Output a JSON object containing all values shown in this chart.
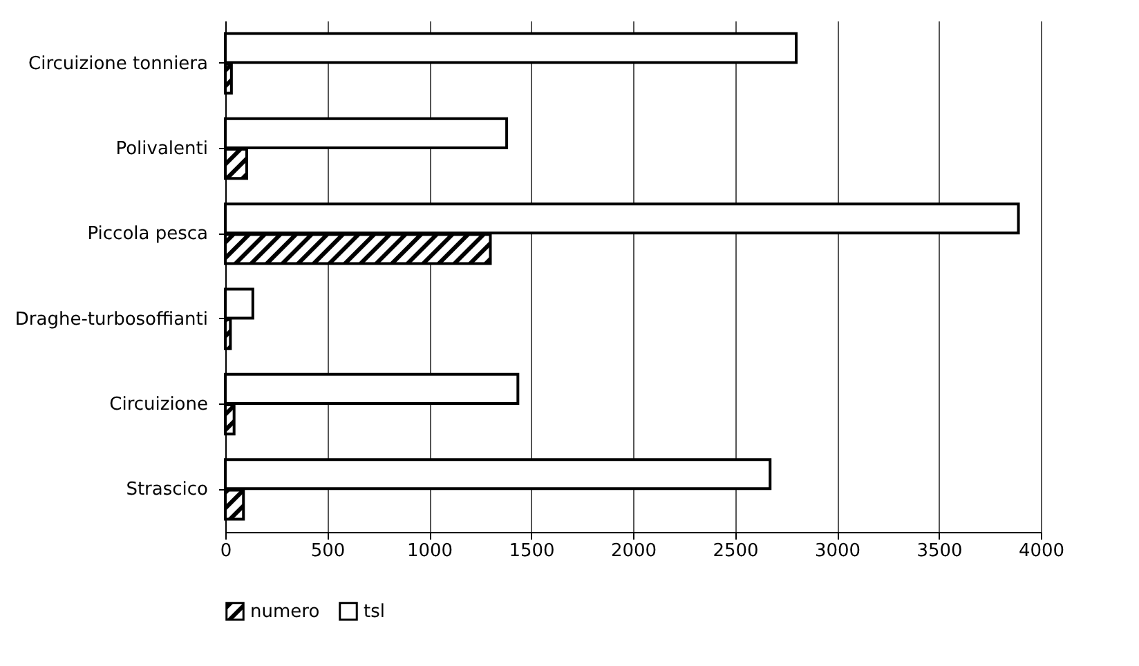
{
  "chart_data": {
    "type": "bar",
    "orientation": "horizontal",
    "categories": [
      "Circuizione tonniera",
      "Polivalenti",
      "Piccola pesca",
      "Draghe-turbosoffianti",
      "Circuizione",
      "Strascico"
    ],
    "series": [
      {
        "name": "numero",
        "color": "#000000",
        "values": [
          30,
          105,
          1300,
          25,
          43,
          89
        ]
      },
      {
        "name": "tsl",
        "color": "#ffffff",
        "values": [
          2800,
          1380,
          3890,
          135,
          1435,
          2672
        ]
      }
    ],
    "xlim": [
      0,
      4000
    ],
    "xticks": [
      0,
      500,
      1000,
      1500,
      2000,
      2500,
      3000,
      3500,
      4000
    ],
    "grid": "x",
    "legend": "bottom"
  }
}
